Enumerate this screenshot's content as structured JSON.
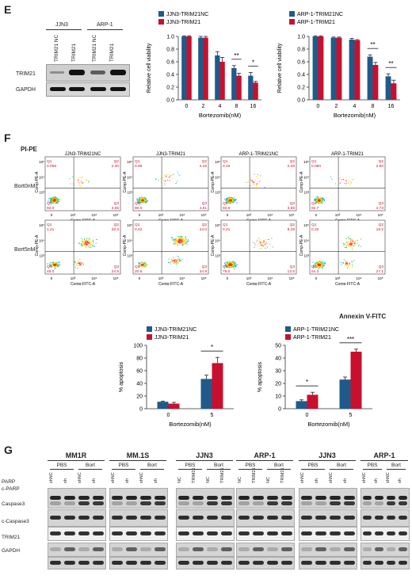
{
  "panels": {
    "E": "E",
    "F": "F",
    "G": "G"
  },
  "colors": {
    "nc": "#1f5a8a",
    "trim": "#c8102e"
  },
  "E": {
    "cell_headers": [
      "JJN3",
      "ARP-1"
    ],
    "lanes": [
      "TRIM21 NC",
      "TRIM21",
      "TRIM21 NC",
      "TRIM21"
    ],
    "rows": [
      "TRIM21",
      "GAPDH"
    ]
  },
  "F": {
    "pipe": "PI-PE",
    "row_labels": [
      "Bort0nM",
      "Bort5nM"
    ],
    "titles": [
      "JJN3-TRIM21NC",
      "JJN3-TRIM21",
      "ARP-1-TRIM21NC",
      "ARP-1-TRIM21"
    ],
    "xaxis": "Comp-FITC-A",
    "yaxis": "Comp-PE-A",
    "annexin": "Annexin V-FITC",
    "quads": [
      [
        [
          "0.059",
          "2.30",
          "94.0",
          "3.65"
        ],
        [
          "0.98",
          "4.18",
          "90.0",
          "4.81"
        ],
        [
          "0.16",
          "2.28",
          "93.9",
          "3.69"
        ],
        [
          "0.080",
          "2.50",
          "92.7",
          "4.73"
        ]
      ],
      [
        [
          "1.21",
          "28.3",
          "46.0",
          "24.5"
        ],
        [
          "0.42",
          "44.0",
          "20.6",
          "34.9"
        ],
        [
          "0.21",
          "8.29",
          "78.0",
          "13.5"
        ],
        [
          "0.32",
          "18.2",
          "54.3",
          "27.1"
        ]
      ]
    ],
    "qnames": [
      "Q1",
      "Q2",
      "Q4",
      "Q3"
    ],
    "xticks": [
      "0",
      "10³",
      "10⁴",
      "10⁵"
    ],
    "yticks": [
      "10⁵",
      "10⁴",
      "10³"
    ]
  },
  "G": {
    "groups": [
      "MM1R",
      "MM.1S",
      "JJN3",
      "ARP-1",
      "JJN3",
      "ARP-1"
    ],
    "subgroups": [
      "PBS",
      "Bort",
      "PBS",
      "Bort",
      "PBS",
      "Bort",
      "PBS",
      "Bort",
      "PBS",
      "Bort",
      "PBS",
      "Bort"
    ],
    "lanes": [
      [
        "shNC",
        "sh",
        "shNC",
        "sh"
      ],
      [
        "shNC",
        "sh",
        "shNC",
        "sh"
      ],
      [
        "NC",
        "TRIM21",
        "NC",
        "TRIM21"
      ],
      [
        "NC",
        "TRIM21",
        "NC",
        "TRIM21"
      ],
      [
        "shNC",
        "sh",
        "shNC",
        "sh"
      ],
      [
        "shNC",
        "sh",
        "shNC",
        "sh"
      ]
    ],
    "rows": [
      "PARP",
      "c-PARP",
      "Caspase3",
      "c-Caspase3",
      "TRIM21",
      "GAPDH"
    ]
  },
  "chart_data": [
    {
      "type": "bar",
      "panel": "E-left",
      "categories": [
        "0",
        "2",
        "4",
        "8",
        "16"
      ],
      "series": [
        {
          "name": "JJN3-TRIM21NC",
          "values": [
            1.0,
            0.98,
            0.7,
            0.5,
            0.38
          ],
          "err": [
            0.01,
            0.02,
            0.06,
            0.04,
            0.05
          ]
        },
        {
          "name": "JJN3-TRIM21",
          "values": [
            1.0,
            0.98,
            0.6,
            0.38,
            0.27
          ],
          "err": [
            0.01,
            0.02,
            0.07,
            0.04,
            0.02
          ]
        }
      ],
      "xlabel": "Bortezomib(nM)",
      "ylabel": "Relative cell viability",
      "ylim": [
        0,
        1.0
      ],
      "yticks": [
        "0.0",
        "0.2",
        "0.4",
        "0.6",
        "0.8",
        "1.0"
      ],
      "sig": [
        {
          "cat": "8",
          "text": "**"
        },
        {
          "cat": "16",
          "text": "*"
        }
      ]
    },
    {
      "type": "bar",
      "panel": "E-right",
      "categories": [
        "0",
        "2",
        "4",
        "8",
        "16"
      ],
      "series": [
        {
          "name": "ARP-1-TRIM21NC",
          "values": [
            1.0,
            0.98,
            0.95,
            0.68,
            0.37
          ],
          "err": [
            0.01,
            0.01,
            0.02,
            0.03,
            0.04
          ]
        },
        {
          "name": "ARP-1-TRIM21",
          "values": [
            1.0,
            0.98,
            0.94,
            0.55,
            0.26
          ],
          "err": [
            0.01,
            0.01,
            0.01,
            0.04,
            0.05
          ]
        }
      ],
      "xlabel": "Bortezomib(nM)",
      "ylabel": "Relative cell viability",
      "ylim": [
        0,
        1.0
      ],
      "yticks": [
        "0.0",
        "0.2",
        "0.4",
        "0.6",
        "0.8",
        "1.0"
      ],
      "sig": [
        {
          "cat": "8",
          "text": "**"
        },
        {
          "cat": "16",
          "text": "**"
        }
      ]
    },
    {
      "type": "bar",
      "panel": "F-left",
      "categories": [
        "0",
        "5"
      ],
      "series": [
        {
          "name": "JJN3-TRIM21NC",
          "values": [
            11,
            47
          ],
          "err": [
            1,
            6
          ]
        },
        {
          "name": "JJN3-TRIM21",
          "values": [
            8,
            72
          ],
          "err": [
            2,
            9
          ]
        }
      ],
      "xlabel": "Bortezomib(nM)",
      "ylabel": "% apoptosis",
      "ylim": [
        0,
        100
      ],
      "yticks": [
        "0",
        "20",
        "40",
        "60",
        "80",
        "100"
      ],
      "sig": [
        {
          "cat": "5",
          "text": "*"
        }
      ]
    },
    {
      "type": "bar",
      "panel": "F-right",
      "categories": [
        "0",
        "5"
      ],
      "series": [
        {
          "name": "ARP-1-TRIM21NC",
          "values": [
            6,
            23
          ],
          "err": [
            1,
            2
          ]
        },
        {
          "name": "ARP-1-TRIM21",
          "values": [
            11,
            45
          ],
          "err": [
            2,
            2
          ]
        }
      ],
      "xlabel": "Bortezomib(nM)",
      "ylabel": "% apoptosis",
      "ylim": [
        0,
        50
      ],
      "yticks": [
        "0",
        "10",
        "20",
        "30",
        "40",
        "50"
      ],
      "sig": [
        {
          "cat": "0",
          "text": "*"
        },
        {
          "cat": "5",
          "text": "***"
        }
      ]
    }
  ]
}
